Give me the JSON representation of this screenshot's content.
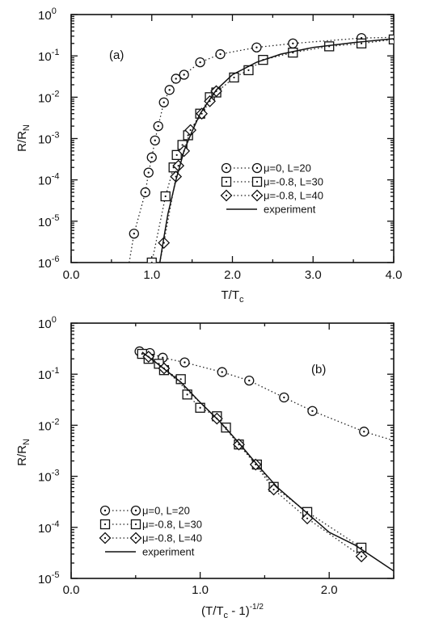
{
  "chart_data": [
    {
      "type": "line",
      "panel_label": "(a)",
      "xlabel": "T/T",
      "xlabel_sub": "c",
      "ylabel": "R/R",
      "ylabel_sub": "N",
      "xlim": [
        0.0,
        4.0
      ],
      "ylim_log10": [
        -6,
        0
      ],
      "x_ticks": [
        "0.0",
        "1.0",
        "2.0",
        "3.0",
        "4.0"
      ],
      "y_ticks": [
        {
          "base": "10",
          "exp": "0"
        },
        {
          "base": "10",
          "exp": "-1"
        },
        {
          "base": "10",
          "exp": "-2"
        },
        {
          "base": "10",
          "exp": "-3"
        },
        {
          "base": "10",
          "exp": "-4"
        },
        {
          "base": "10",
          "exp": "-5"
        },
        {
          "base": "10",
          "exp": "-6"
        }
      ],
      "legend_position": "lower-right",
      "series": [
        {
          "name": "μ=0, L=20",
          "marker": "circle",
          "line": "dotted",
          "x": [
            0.78,
            0.92,
            0.96,
            1.0,
            1.04,
            1.08,
            1.15,
            1.22,
            1.3,
            1.4,
            1.6,
            1.85,
            2.3,
            2.75,
            3.6
          ],
          "y": [
            5e-06,
            5e-05,
            0.00015,
            0.00035,
            0.0009,
            0.002,
            0.0075,
            0.015,
            0.028,
            0.035,
            0.07,
            0.11,
            0.16,
            0.2,
            0.27
          ],
          "extend": {
            "x": [
              0.72,
              0.78
            ],
            "y": [
              1e-06,
              5e-06
            ]
          },
          "tail": {
            "x": [
              3.6,
              4.0
            ],
            "y": [
              0.27,
              0.28
            ]
          }
        },
        {
          "name": "μ=-0.8, L=30",
          "marker": "square",
          "line": "dotted",
          "x": [
            1.0,
            1.17,
            1.27,
            1.31,
            1.38,
            1.45,
            1.6,
            1.72,
            1.8,
            2.02,
            2.2,
            2.38,
            2.75,
            3.2,
            3.6,
            4.0
          ],
          "y": [
            1e-06,
            4e-05,
            0.0002,
            0.0004,
            0.0007,
            0.0012,
            0.004,
            0.01,
            0.013,
            0.03,
            0.045,
            0.08,
            0.12,
            0.17,
            0.2,
            0.25
          ],
          "extend": null,
          "tail": null
        },
        {
          "name": "μ=-0.8, L=40",
          "marker": "diamond",
          "line": "dotted",
          "x": [
            1.15,
            1.3,
            1.33,
            1.4,
            1.48,
            1.62,
            1.72,
            1.8
          ],
          "y": [
            3e-06,
            0.00012,
            0.00022,
            0.0005,
            0.0016,
            0.004,
            0.008,
            0.014
          ],
          "extend": {
            "x": [
              1.1,
              1.15
            ],
            "y": [
              1e-06,
              3e-06
            ]
          },
          "tail": null
        },
        {
          "name": "experiment",
          "marker": "none",
          "line": "solid",
          "x": [
            1.1,
            1.15,
            1.2,
            1.3,
            1.4,
            1.5,
            1.6,
            1.8,
            2.0,
            2.3,
            2.6,
            3.0,
            3.5,
            4.0
          ],
          "y": [
            1e-06,
            4e-06,
            1.5e-05,
            0.0001,
            0.0005,
            0.0015,
            0.004,
            0.015,
            0.035,
            0.07,
            0.11,
            0.16,
            0.21,
            0.26
          ]
        }
      ]
    },
    {
      "type": "line",
      "panel_label": "(b)",
      "xlabel": "(T/T",
      "xlabel_sub": "c",
      "xlabel_tail": " - 1)",
      "xlabel_sup": "-1/2",
      "ylabel": "R/R",
      "ylabel_sub": "N",
      "xlim": [
        0.0,
        2.5
      ],
      "ylim_log10": [
        -5,
        0
      ],
      "x_ticks": [
        "0.0",
        "1.0",
        "2.0"
      ],
      "y_ticks": [
        {
          "base": "10",
          "exp": "0"
        },
        {
          "base": "10",
          "exp": "-1"
        },
        {
          "base": "10",
          "exp": "-2"
        },
        {
          "base": "10",
          "exp": "-3"
        },
        {
          "base": "10",
          "exp": "-4"
        },
        {
          "base": "10",
          "exp": "-5"
        }
      ],
      "legend_position": "lower-left",
      "series": [
        {
          "name": "μ=0, L=20",
          "marker": "circle",
          "line": "dotted",
          "x": [
            0.53,
            0.61,
            0.71,
            0.88,
            1.17,
            1.38,
            1.65,
            1.87,
            2.27,
            2.5
          ],
          "y": [
            0.28,
            0.26,
            0.21,
            0.17,
            0.11,
            0.075,
            0.035,
            0.019,
            0.0075,
            0.005
          ],
          "draw_markers_to": 9
        },
        {
          "name": "μ=-0.8, L=30",
          "marker": "square",
          "line": "dotted",
          "x": [
            0.55,
            0.6,
            0.68,
            0.72,
            0.85,
            0.9,
            1.0,
            1.13,
            1.2,
            1.3,
            1.44,
            1.57,
            1.83,
            2.25
          ],
          "y": [
            0.25,
            0.2,
            0.16,
            0.12,
            0.08,
            0.04,
            0.022,
            0.015,
            0.009,
            0.0042,
            0.0017,
            0.00062,
            0.0002,
            4e-05
          ]
        },
        {
          "name": "μ=-0.8, L=40",
          "marker": "diamond",
          "line": "dotted",
          "x": [
            0.6,
            0.72,
            1.13,
            1.3,
            1.43,
            1.57,
            1.83,
            2.25
          ],
          "y": [
            0.22,
            0.13,
            0.0135,
            0.0042,
            0.0017,
            0.00055,
            0.00015,
            2.7e-05
          ]
        },
        {
          "name": "experiment",
          "marker": "none",
          "line": "solid",
          "x": [
            0.55,
            0.7,
            0.85,
            1.0,
            1.15,
            1.3,
            1.45,
            1.6,
            1.8,
            2.0,
            2.2,
            2.5
          ],
          "y": [
            0.27,
            0.14,
            0.07,
            0.028,
            0.012,
            0.0045,
            0.0016,
            0.0006,
            0.00022,
            8e-05,
            4.5e-05,
            1.4e-05
          ]
        }
      ]
    }
  ]
}
